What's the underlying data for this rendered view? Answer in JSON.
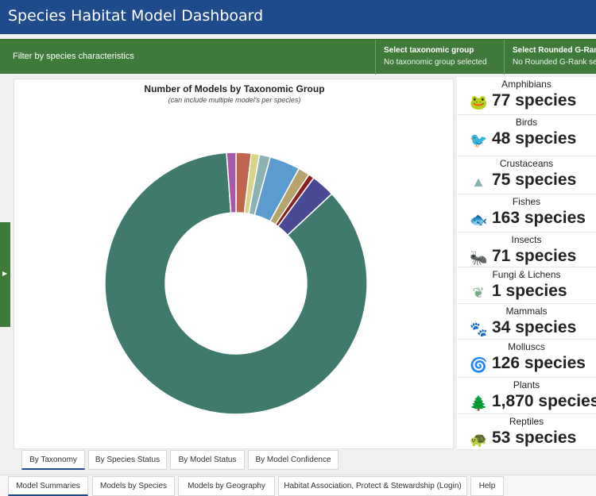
{
  "header": {
    "title": "Species Habitat Model Dashboard"
  },
  "filters": {
    "label": "Filter by species characteristics",
    "taxonomic": {
      "heading": "Select taxonomic group",
      "value": "No taxonomic group selected"
    },
    "grank": {
      "heading": "Select Rounded G-Rank",
      "value": "No Rounded G-Rank selected"
    }
  },
  "chart": {
    "title": "Number of Models by Taxonomic Group",
    "subtitle": "(can include multiple model's per species)"
  },
  "chart_data": {
    "type": "pie",
    "donut": true,
    "title": "Number of Models by Taxonomic Group",
    "subtitle": "(can include multiple model's per species)",
    "legend": "none",
    "slices": [
      {
        "value": 42,
        "color": "#c0664e"
      },
      {
        "value": 23,
        "color": "#d8d58a"
      },
      {
        "value": 30,
        "color": "#8db2b4"
      },
      {
        "value": 85,
        "color": "#5b9bd0"
      },
      {
        "value": 32,
        "color": "#b6a46a"
      },
      {
        "value": 16,
        "color": "#8c2020"
      },
      {
        "value": 66,
        "color": "#4a4a94"
      },
      {
        "value": 1935,
        "color": "#3f7a6d"
      },
      {
        "value": 26,
        "color": "#a85aa8"
      }
    ]
  },
  "species": [
    {
      "name": "Amphibians",
      "count": "77 species",
      "icon": "frog-icon",
      "color": "#a0522d",
      "glyph": "🐸"
    },
    {
      "name": "Birds",
      "count": "48 species",
      "icon": "bird-icon",
      "color": "#d6cf6a",
      "glyph": "🐦"
    },
    {
      "name": "Crustaceans",
      "count": "75 species",
      "icon": "mound-icon",
      "color": "#8ab0b0",
      "glyph": "▲"
    },
    {
      "name": "Fishes",
      "count": "163 species",
      "icon": "fish-hook-icon",
      "color": "#4a86c8",
      "glyph": "🐟"
    },
    {
      "name": "Insects",
      "count": "71 species",
      "icon": "ant-icon",
      "color": "#b89a54",
      "glyph": "🐜"
    },
    {
      "name": "Fungi & Lichens",
      "count": "1 species",
      "icon": "lichen-icon",
      "color": "#7aa88a",
      "glyph": "❦"
    },
    {
      "name": "Mammals",
      "count": "34 species",
      "icon": "paw-icon",
      "color": "#8c2020",
      "glyph": "🐾"
    },
    {
      "name": "Molluscs",
      "count": "126 species",
      "icon": "shell-icon",
      "color": "#3a3a8c",
      "glyph": "🌀"
    },
    {
      "name": "Plants",
      "count": "1,870 species",
      "icon": "tree-icon",
      "color": "#2f6a5c",
      "glyph": "🌲"
    },
    {
      "name": "Reptiles",
      "count": "53 species",
      "icon": "turtle-icon",
      "color": "#a05aa0",
      "glyph": "🐢"
    }
  ],
  "chart_tabs": [
    "By Taxonomy",
    "By Species Status",
    "By Model Status",
    "By Model Confidence"
  ],
  "main_tabs": [
    "Model Summaries",
    "Models by Species",
    "Models by Geography",
    "Habitat Association, Protect & Stewardship (Login)",
    "Help"
  ]
}
